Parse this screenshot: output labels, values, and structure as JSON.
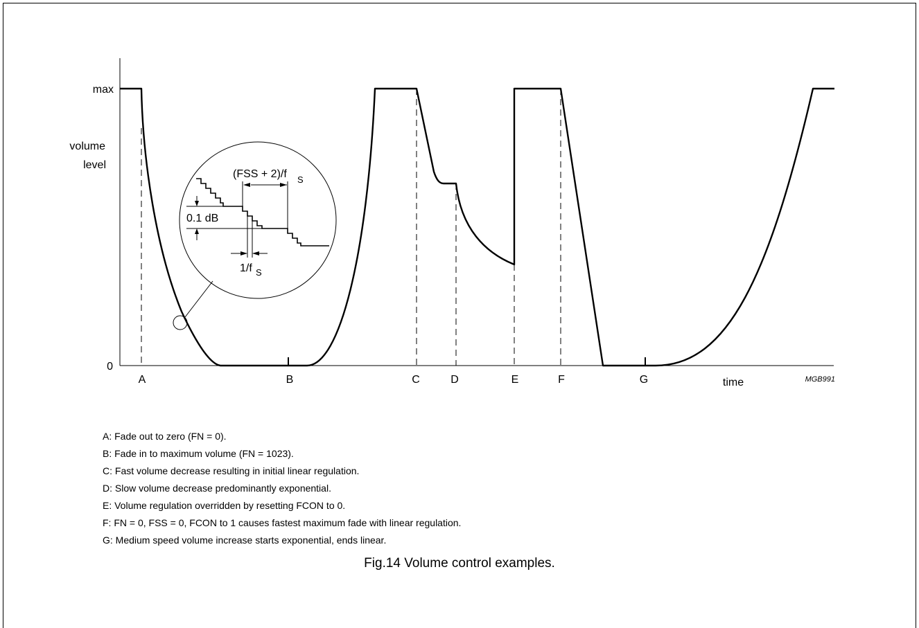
{
  "figure": {
    "y_labels": {
      "max": "max",
      "zero": "0",
      "volume": "volume",
      "level": "level"
    },
    "x_axis_label": "time",
    "code": "MGB991",
    "events": [
      "A",
      "B",
      "C",
      "D",
      "E",
      "F",
      "G"
    ],
    "inset": {
      "period_text": "(FSS + 2)/f",
      "period_sub": "S",
      "step_text": "0.1 dB",
      "sample_text": "1/f",
      "sample_sub": "S"
    },
    "notes": [
      "A: Fade out to zero (FN = 0).",
      "B: Fade in to maximum volume (FN = 1023).",
      "C: Fast volume decrease resulting in initial linear regulation.",
      "D: Slow volume decrease predominantly exponential.",
      "E: Volume regulation overridden by resetting FCON to 0.",
      "F: FN = 0, FSS = 0, FCON to 1 causes fastest maximum fade with linear regulation.",
      "G: Medium speed volume increase starts exponential, ends linear."
    ],
    "caption": "Fig.14  Volume control examples."
  }
}
